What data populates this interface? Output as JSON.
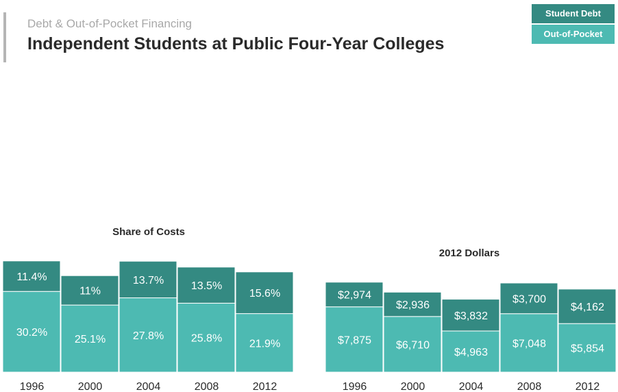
{
  "header": {
    "subtitle": "Debt & Out-of-Pocket Financing",
    "title": "Independent Students at Public Four-Year Colleges"
  },
  "legend": [
    {
      "label": "Student Debt",
      "color": "#348a82"
    },
    {
      "label": "Out-of-Pocket",
      "color": "#4dbab2"
    }
  ],
  "chart_data": [
    {
      "type": "bar",
      "stacked": true,
      "title": "Share of Costs",
      "categories": [
        "1996",
        "2000",
        "2004",
        "2008",
        "2012"
      ],
      "series": [
        {
          "name": "Out-of-Pocket",
          "values": [
            30.2,
            25.1,
            27.8,
            25.8,
            21.9
          ],
          "labels": [
            "30.2%",
            "25.1%",
            "27.8%",
            "25.8%",
            "21.9%"
          ]
        },
        {
          "name": "Student Debt",
          "values": [
            11.4,
            11,
            13.7,
            13.5,
            15.6
          ],
          "labels": [
            "11.4%",
            "11%",
            "13.7%",
            "13.5%",
            "15.6%"
          ]
        }
      ]
    },
    {
      "type": "bar",
      "stacked": true,
      "title": "2012 Dollars",
      "categories": [
        "1996",
        "2000",
        "2004",
        "2008",
        "2012"
      ],
      "series": [
        {
          "name": "Out-of-Pocket",
          "values": [
            7875,
            6710,
            4963,
            7048,
            5854
          ],
          "labels": [
            "$7,875",
            "$6,710",
            "$4,963",
            "$7,048",
            "$5,854"
          ]
        },
        {
          "name": "Student Debt",
          "values": [
            2974,
            2936,
            3832,
            3700,
            4162
          ],
          "labels": [
            "$2,974",
            "$2,936",
            "$3,832",
            "$3,700",
            "$4,162"
          ]
        }
      ]
    }
  ]
}
